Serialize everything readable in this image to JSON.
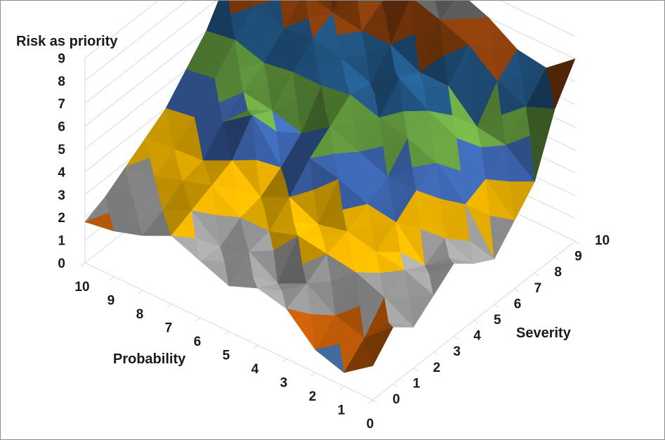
{
  "chart_data": {
    "type": "surface",
    "title": "",
    "zlabel": "Risk as priority",
    "xlabel": "Probability",
    "ylabel": "Severity",
    "x_ticks": [
      "0",
      "1",
      "2",
      "3",
      "4",
      "5",
      "6",
      "7",
      "8",
      "9",
      "10"
    ],
    "y_ticks": [
      "0",
      "1",
      "2",
      "3",
      "4",
      "5",
      "6",
      "7",
      "8",
      "9",
      "10"
    ],
    "z_ticks": [
      "0",
      "1",
      "2",
      "3",
      "4",
      "5",
      "6",
      "7",
      "8",
      "9"
    ],
    "zlim": [
      0,
      9
    ],
    "band_colors": [
      "#4f81bd",
      "#e46c0a",
      "#a5a5a5",
      "#ffc000",
      "#4472c4",
      "#70ad47",
      "#255e91",
      "#9e480e",
      "#636363"
    ],
    "grid": true,
    "legend": "none",
    "note_values": "z[probability][severity], estimated from the rendered surface",
    "z": [
      [
        1.5,
        2.5,
        1.8,
        2.5,
        3.2,
        2.5,
        2.0,
        3.0,
        4.0,
        6.5,
        8.0
      ],
      [
        0.6,
        1.4,
        2.5,
        3.0,
        2.5,
        3.0,
        3.8,
        4.2,
        5.0,
        6.0,
        7.0
      ],
      [
        1.0,
        1.8,
        3.0,
        3.2,
        3.8,
        4.5,
        5.0,
        5.4,
        5.2,
        6.5,
        7.2
      ],
      [
        2.2,
        2.6,
        3.2,
        3.5,
        4.0,
        4.5,
        5.5,
        6.0,
        6.4,
        7.5,
        8.0
      ],
      [
        2.5,
        2.0,
        3.4,
        3.2,
        4.5,
        5.0,
        5.8,
        6.8,
        6.4,
        8.0,
        8.5
      ],
      [
        2.0,
        2.8,
        3.0,
        3.8,
        4.8,
        5.5,
        6.2,
        6.0,
        7.0,
        8.4,
        8.0
      ],
      [
        2.5,
        2.4,
        3.0,
        3.2,
        3.8,
        4.6,
        6.0,
        6.5,
        7.0,
        7.6,
        8.4
      ],
      [
        3.0,
        3.4,
        3.8,
        4.2,
        5.5,
        5.0,
        6.0,
        6.8,
        7.2,
        8.8,
        8.2
      ],
      [
        2.4,
        2.8,
        3.4,
        3.6,
        4.6,
        5.2,
        5.8,
        6.6,
        7.5,
        8.3,
        9.0
      ],
      [
        2.0,
        2.6,
        3.0,
        3.5,
        4.2,
        5.2,
        6.2,
        7.0,
        8.0,
        8.5,
        9.0
      ],
      [
        1.8,
        2.2,
        2.8,
        3.4,
        4.0,
        5.0,
        6.0,
        7.5,
        8.5,
        9.0,
        9.0
      ]
    ]
  }
}
